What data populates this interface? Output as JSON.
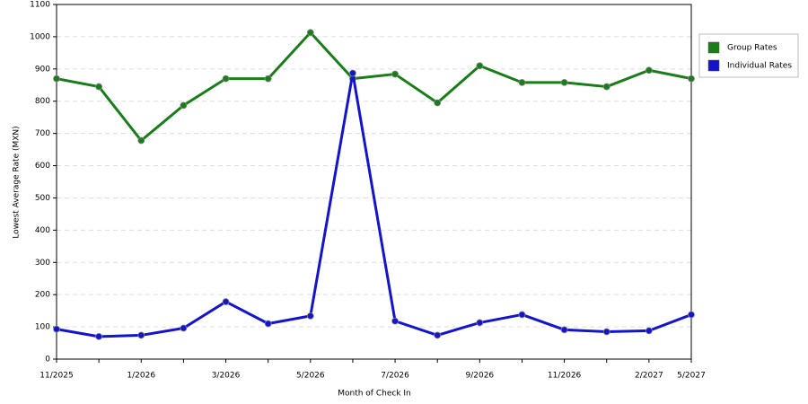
{
  "chart_data": {
    "type": "line",
    "x_label": "Month of Check In",
    "y_label": "Lowest Average Rate (MXN)",
    "categories": [
      "11/2025",
      null,
      "1/2026",
      null,
      "3/2026",
      null,
      "5/2026",
      null,
      "7/2026",
      null,
      "9/2026",
      null,
      "11/2026",
      null,
      "2/2027",
      "5/2027"
    ],
    "series": [
      {
        "name": "Group Rates",
        "color": "#1a7d1a",
        "values": [
          870,
          845,
          678,
          787,
          870,
          870,
          1013,
          870,
          884,
          795,
          910,
          858,
          858,
          845,
          896,
          870
        ]
      },
      {
        "name": "Individual Rates",
        "color": "#1414cc",
        "values": [
          93,
          70,
          74,
          96,
          178,
          110,
          134,
          887,
          118,
          74,
          113,
          138,
          91,
          85,
          88,
          138
        ]
      }
    ],
    "ylim": [
      0,
      1100
    ],
    "yticks": [
      0,
      100,
      200,
      300,
      400,
      500,
      600,
      700,
      800,
      900,
      1000,
      1100
    ],
    "grid": true,
    "legend": "right"
  }
}
